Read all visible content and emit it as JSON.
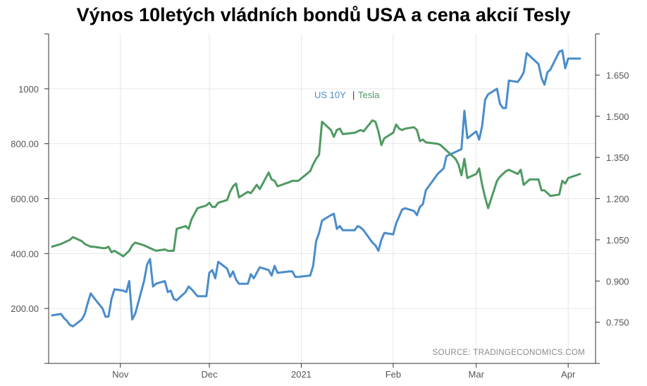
{
  "chart_data": {
    "type": "line",
    "title": "Výnos 10letých vládních bondů USA a cena akcií Tesly",
    "source": "SOURCE: TRADINGECONOMICS.COM",
    "x_ticks": [
      "Nov",
      "Dec",
      "2021",
      "Feb",
      "Mar",
      "Apr"
    ],
    "left_axis": {
      "ticks": [
        "200.00",
        "400.00",
        "600.00",
        "800.00",
        "1000"
      ],
      "tick_values": [
        200,
        400,
        600,
        800,
        1000
      ],
      "range": [
        0,
        1200
      ]
    },
    "right_axis": {
      "ticks": [
        "0.750",
        "0.900",
        "1.050",
        "1.200",
        "1.350",
        "1.500",
        "1.650"
      ],
      "tick_values": [
        0.75,
        0.9,
        1.05,
        1.2,
        1.35,
        1.5,
        1.65
      ],
      "range": [
        0.6,
        1.8
      ]
    },
    "grid": true,
    "legend_position": "top-center",
    "series": [
      {
        "name": "US 10Y",
        "axis": "right",
        "color": "#4a8ccb",
        "x": [
          "2020-10-09",
          "2020-10-12",
          "2020-10-13",
          "2020-10-14",
          "2020-10-15",
          "2020-10-16",
          "2020-10-19",
          "2020-10-20",
          "2020-10-21",
          "2020-10-22",
          "2020-10-23",
          "2020-10-26",
          "2020-10-27",
          "2020-10-28",
          "2020-10-29",
          "2020-10-30",
          "2020-11-02",
          "2020-11-03",
          "2020-11-04",
          "2020-11-05",
          "2020-11-06",
          "2020-11-09",
          "2020-11-10",
          "2020-11-11",
          "2020-11-12",
          "2020-11-13",
          "2020-11-16",
          "2020-11-17",
          "2020-11-18",
          "2020-11-19",
          "2020-11-20",
          "2020-11-23",
          "2020-11-24",
          "2020-11-25",
          "2020-11-27",
          "2020-11-30",
          "2020-12-01",
          "2020-12-02",
          "2020-12-03",
          "2020-12-04",
          "2020-12-07",
          "2020-12-08",
          "2020-12-09",
          "2020-12-10",
          "2020-12-11",
          "2020-12-14",
          "2020-12-15",
          "2020-12-16",
          "2020-12-17",
          "2020-12-18",
          "2020-12-21",
          "2020-12-22",
          "2020-12-23",
          "2020-12-24",
          "2020-12-28",
          "2020-12-29",
          "2020-12-30",
          "2020-12-31",
          "2021-01-04",
          "2021-01-05",
          "2021-01-06",
          "2021-01-07",
          "2021-01-08",
          "2021-01-11",
          "2021-01-12",
          "2021-01-13",
          "2021-01-14",
          "2021-01-15",
          "2021-01-19",
          "2021-01-20",
          "2021-01-21",
          "2021-01-22",
          "2021-01-25",
          "2021-01-26",
          "2021-01-27",
          "2021-01-28",
          "2021-01-29",
          "2021-02-01",
          "2021-02-02",
          "2021-02-03",
          "2021-02-04",
          "2021-02-05",
          "2021-02-08",
          "2021-02-09",
          "2021-02-10",
          "2021-02-11",
          "2021-02-12",
          "2021-02-16",
          "2021-02-17",
          "2021-02-18",
          "2021-02-19",
          "2021-02-22",
          "2021-02-23",
          "2021-02-24",
          "2021-02-25",
          "2021-02-26",
          "2021-03-01",
          "2021-03-02",
          "2021-03-03",
          "2021-03-04",
          "2021-03-05",
          "2021-03-08",
          "2021-03-09",
          "2021-03-10",
          "2021-03-11",
          "2021-03-12",
          "2021-03-15",
          "2021-03-16",
          "2021-03-17",
          "2021-03-18",
          "2021-03-19",
          "2021-03-22",
          "2021-03-23",
          "2021-03-24",
          "2021-03-25",
          "2021-03-26",
          "2021-03-29",
          "2021-03-30",
          "2021-03-31",
          "2021-04-01",
          "2021-04-05"
        ],
        "values": [
          0.775,
          0.78,
          0.765,
          0.755,
          0.74,
          0.735,
          0.76,
          0.78,
          0.82,
          0.855,
          0.84,
          0.8,
          0.77,
          0.77,
          0.835,
          0.87,
          0.865,
          0.86,
          0.9,
          0.76,
          0.78,
          0.9,
          0.96,
          0.98,
          0.88,
          0.89,
          0.9,
          0.86,
          0.865,
          0.835,
          0.83,
          0.86,
          0.88,
          0.87,
          0.845,
          0.845,
          0.93,
          0.94,
          0.91,
          0.97,
          0.945,
          0.915,
          0.935,
          0.905,
          0.89,
          0.89,
          0.925,
          0.91,
          0.93,
          0.95,
          0.94,
          0.92,
          0.955,
          0.93,
          0.935,
          0.935,
          0.915,
          0.915,
          0.92,
          0.955,
          1.045,
          1.075,
          1.12,
          1.14,
          1.145,
          1.09,
          1.1,
          1.085,
          1.085,
          1.1,
          1.095,
          1.085,
          1.04,
          1.03,
          1.01,
          1.05,
          1.075,
          1.07,
          1.11,
          1.135,
          1.16,
          1.165,
          1.155,
          1.14,
          1.17,
          1.18,
          1.23,
          1.29,
          1.3,
          1.31,
          1.355,
          1.37,
          1.375,
          1.38,
          1.52,
          1.42,
          1.445,
          1.415,
          1.465,
          1.56,
          1.58,
          1.6,
          1.545,
          1.53,
          1.53,
          1.63,
          1.625,
          1.64,
          1.66,
          1.73,
          1.72,
          1.69,
          1.64,
          1.615,
          1.66,
          1.67,
          1.735,
          1.74,
          1.675,
          1.71,
          1.71
        ]
      },
      {
        "name": "Tesla",
        "axis": "left",
        "color": "#4f9a62",
        "x": [
          "2020-10-09",
          "2020-10-12",
          "2020-10-13",
          "2020-10-14",
          "2020-10-15",
          "2020-10-16",
          "2020-10-19",
          "2020-10-20",
          "2020-10-21",
          "2020-10-22",
          "2020-10-23",
          "2020-10-26",
          "2020-10-27",
          "2020-10-28",
          "2020-10-29",
          "2020-10-30",
          "2020-11-02",
          "2020-11-03",
          "2020-11-04",
          "2020-11-05",
          "2020-11-06",
          "2020-11-09",
          "2020-11-10",
          "2020-11-11",
          "2020-11-12",
          "2020-11-13",
          "2020-11-16",
          "2020-11-17",
          "2020-11-18",
          "2020-11-19",
          "2020-11-20",
          "2020-11-23",
          "2020-11-24",
          "2020-11-25",
          "2020-11-27",
          "2020-11-30",
          "2020-12-01",
          "2020-12-02",
          "2020-12-03",
          "2020-12-04",
          "2020-12-07",
          "2020-12-08",
          "2020-12-09",
          "2020-12-10",
          "2020-12-11",
          "2020-12-14",
          "2020-12-15",
          "2020-12-16",
          "2020-12-17",
          "2020-12-18",
          "2020-12-21",
          "2020-12-22",
          "2020-12-23",
          "2020-12-24",
          "2020-12-28",
          "2020-12-29",
          "2020-12-30",
          "2020-12-31",
          "2021-01-04",
          "2021-01-05",
          "2021-01-06",
          "2021-01-07",
          "2021-01-08",
          "2021-01-11",
          "2021-01-12",
          "2021-01-13",
          "2021-01-14",
          "2021-01-15",
          "2021-01-19",
          "2021-01-20",
          "2021-01-21",
          "2021-01-22",
          "2021-01-25",
          "2021-01-26",
          "2021-01-27",
          "2021-01-28",
          "2021-01-29",
          "2021-02-01",
          "2021-02-02",
          "2021-02-03",
          "2021-02-04",
          "2021-02-05",
          "2021-02-08",
          "2021-02-09",
          "2021-02-10",
          "2021-02-11",
          "2021-02-12",
          "2021-02-16",
          "2021-02-17",
          "2021-02-18",
          "2021-02-19",
          "2021-02-22",
          "2021-02-23",
          "2021-02-24",
          "2021-02-25",
          "2021-02-26",
          "2021-03-01",
          "2021-03-02",
          "2021-03-03",
          "2021-03-04",
          "2021-03-05",
          "2021-03-08",
          "2021-03-09",
          "2021-03-10",
          "2021-03-11",
          "2021-03-12",
          "2021-03-15",
          "2021-03-16",
          "2021-03-17",
          "2021-03-18",
          "2021-03-19",
          "2021-03-22",
          "2021-03-23",
          "2021-03-24",
          "2021-03-25",
          "2021-03-26",
          "2021-03-29",
          "2021-03-30",
          "2021-03-31",
          "2021-04-01",
          "2021-04-05"
        ],
        "values": [
          425,
          435,
          440,
          445,
          450,
          460,
          445,
          435,
          430,
          425,
          425,
          420,
          420,
          425,
          405,
          410,
          390,
          400,
          410,
          430,
          440,
          430,
          425,
          420,
          415,
          410,
          415,
          410,
          410,
          410,
          490,
          500,
          490,
          525,
          565,
          575,
          585,
          570,
          570,
          585,
          595,
          625,
          645,
          655,
          605,
          625,
          620,
          635,
          650,
          635,
          695,
          670,
          665,
          645,
          660,
          665,
          665,
          665,
          700,
          725,
          745,
          760,
          880,
          850,
          825,
          850,
          855,
          835,
          840,
          845,
          850,
          845,
          885,
          880,
          845,
          795,
          820,
          840,
          870,
          855,
          850,
          855,
          860,
          850,
          810,
          815,
          805,
          800,
          795,
          785,
          775,
          745,
          725,
          685,
          745,
          675,
          690,
          710,
          650,
          605,
          565,
          665,
          680,
          690,
          700,
          705,
          690,
          705,
          650,
          660,
          670,
          670,
          630,
          630,
          620,
          610,
          615,
          665,
          655,
          675,
          690
        ]
      }
    ]
  }
}
